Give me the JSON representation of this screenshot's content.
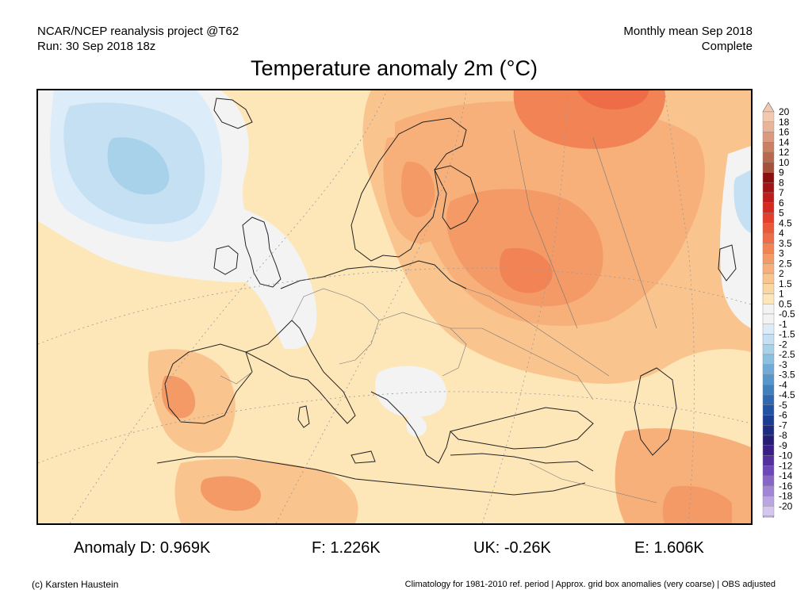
{
  "header": {
    "left_line1": "NCAR/NCEP reanalysis project @T62",
    "left_line2": "Run: 30 Sep 2018 18z",
    "right_line1": "Monthly mean Sep 2018",
    "right_line2": "Complete"
  },
  "title": "Temperature anomaly 2m (°C)",
  "colorbar": {
    "levels": [
      {
        "label": "20",
        "color": "#f2c9b0"
      },
      {
        "label": "18",
        "color": "#e8b49a"
      },
      {
        "label": "16",
        "color": "#d99a7e"
      },
      {
        "label": "14",
        "color": "#c98063"
      },
      {
        "label": "12",
        "color": "#b8694d"
      },
      {
        "label": "10",
        "color": "#a4523a"
      },
      {
        "label": "9",
        "color": "#8c0f0f"
      },
      {
        "label": "8",
        "color": "#a31515"
      },
      {
        "label": "7",
        "color": "#be1d1d"
      },
      {
        "label": "6",
        "color": "#d6291f"
      },
      {
        "label": "5",
        "color": "#e43f2c"
      },
      {
        "label": "4.5",
        "color": "#ea5839"
      },
      {
        "label": "4",
        "color": "#ee6c47"
      },
      {
        "label": "3.5",
        "color": "#f18355"
      },
      {
        "label": "3",
        "color": "#f49a66"
      },
      {
        "label": "2.5",
        "color": "#f7b07a"
      },
      {
        "label": "2",
        "color": "#f9c48e"
      },
      {
        "label": "1.5",
        "color": "#fbd5a2"
      },
      {
        "label": "1",
        "color": "#fde6b8"
      },
      {
        "label": "0.5",
        "color": "#f3f3f3"
      },
      {
        "label": "-0.5",
        "color": "#f3f3f3"
      },
      {
        "label": "-1",
        "color": "#dcecf8"
      },
      {
        "label": "-1.5",
        "color": "#c4e0f2"
      },
      {
        "label": "-2",
        "color": "#a8d1ea"
      },
      {
        "label": "-2.5",
        "color": "#8cc0e0"
      },
      {
        "label": "-3",
        "color": "#6fabd6"
      },
      {
        "label": "-3.5",
        "color": "#5796ca"
      },
      {
        "label": "-4",
        "color": "#427fbd"
      },
      {
        "label": "-4.5",
        "color": "#3268b0"
      },
      {
        "label": "-5",
        "color": "#2352a3"
      },
      {
        "label": "-6",
        "color": "#1b3e92"
      },
      {
        "label": "-7",
        "color": "#1c2c80"
      },
      {
        "label": "-8",
        "color": "#251e73"
      },
      {
        "label": "-9",
        "color": "#3a1f86"
      },
      {
        "label": "-10",
        "color": "#53309e"
      },
      {
        "label": "-12",
        "color": "#6d48b6"
      },
      {
        "label": "-14",
        "color": "#8866c7"
      },
      {
        "label": "-16",
        "color": "#a286d6"
      },
      {
        "label": "-18",
        "color": "#bba6e3"
      },
      {
        "label": "-20",
        "color": "#d4c6ef"
      }
    ]
  },
  "stats": {
    "anomaly_d": "Anomaly D: 0.969K",
    "anomaly_f": "F: 1.226K",
    "anomaly_uk": "UK: -0.26K",
    "anomaly_e": "E: 1.606K"
  },
  "footer": {
    "left": "(c) Karsten Haustein",
    "right": "Climatology for 1981-2010 ref. period | Approx. grid box anomalies (very coarse) | OBS adjusted"
  }
}
